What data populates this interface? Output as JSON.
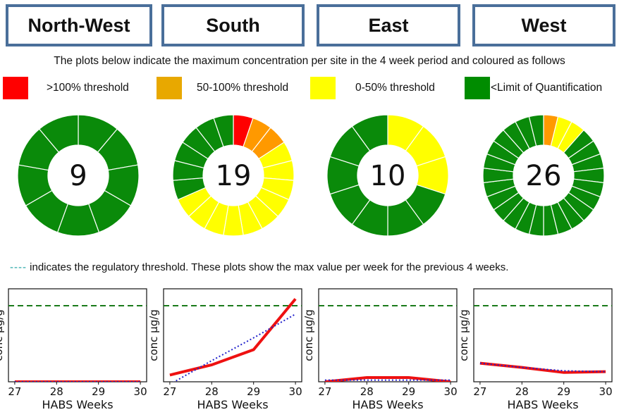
{
  "regions": [
    "North-West",
    "South",
    "East",
    "West"
  ],
  "intro_text": "The plots below indicate the maximum concentration per site in the 4 week period and coloured as follows",
  "legend": [
    {
      "label": ">100% threshold",
      "color": "#ff0000"
    },
    {
      "label": "50-100% threshold",
      "color": "#e8a800"
    },
    {
      "label": "0-50% threshold",
      "color": "#ffff00"
    },
    {
      "label": "<Limit of Quantification",
      "color": "#008c00"
    }
  ],
  "threshold_note": {
    "dash": "----",
    "text": " indicates the regulatory threshold. These plots show the max value per week for the previous 4 weeks."
  },
  "colors": {
    "red": "#ff0000",
    "amber": "#ff9900",
    "yellow": "#ffff00",
    "green": "#0a8a0a",
    "threshold_line": "#1a7a1a",
    "trend": "#2222cc",
    "max_line": "#ee1111"
  },
  "chart_data": [
    {
      "type": "pie",
      "region": "North-West",
      "count": "9",
      "slices": [
        {
          "label": "<Limit of Quantification",
          "value": 9
        }
      ]
    },
    {
      "type": "pie",
      "region": "South",
      "count": "19",
      "slices": [
        {
          "label": ">100% threshold",
          "value": 1
        },
        {
          "label": "50-100% threshold",
          "value": 2
        },
        {
          "label": "0-50% threshold",
          "value": 10
        },
        {
          "label": "<Limit of Quantification",
          "value": 6
        }
      ]
    },
    {
      "type": "pie",
      "region": "East",
      "count": "10",
      "slices": [
        {
          "label": "0-50% threshold",
          "value": 3
        },
        {
          "label": "<Limit of Quantification",
          "value": 7
        }
      ]
    },
    {
      "type": "pie",
      "region": "West",
      "count": "26",
      "slices": [
        {
          "label": "50-100% threshold",
          "value": 1
        },
        {
          "label": "0-50% threshold",
          "value": 2
        },
        {
          "label": "<Limit of Quantification",
          "value": 23
        }
      ]
    },
    {
      "type": "line",
      "region": "North-West",
      "xlabel": "HABS Weeks",
      "ylabel": "conc µg/g",
      "x": [
        27,
        28,
        29,
        30
      ],
      "ylim": [
        0,
        1.1
      ],
      "threshold": 0.9,
      "series": [
        {
          "values": [
            0,
            0,
            0,
            0
          ]
        }
      ],
      "trend": [
        0,
        0,
        0,
        0
      ]
    },
    {
      "type": "line",
      "region": "South",
      "xlabel": "HABS Weeks",
      "ylabel": "conc µg/g",
      "x": [
        27,
        28,
        29,
        30
      ],
      "ylim": [
        0,
        1.1
      ],
      "threshold": 0.9,
      "series": [
        {
          "values": [
            0.08,
            0.2,
            0.38,
            0.98
          ]
        }
      ],
      "trend": [
        -0.03,
        0.25,
        0.52,
        0.8
      ]
    },
    {
      "type": "line",
      "region": "East",
      "xlabel": "HABS Weeks",
      "ylabel": "conc µg/g",
      "x": [
        27,
        28,
        29,
        30
      ],
      "ylim": [
        0,
        1.1
      ],
      "threshold": 0.9,
      "series": [
        {
          "values": [
            0,
            0.05,
            0.05,
            0
          ]
        }
      ],
      "trend": [
        0.02,
        0.02,
        0.02,
        0.02
      ]
    },
    {
      "type": "line",
      "region": "West",
      "xlabel": "HABS Weeks",
      "ylabel": "conc µg/g",
      "x": [
        27,
        28,
        29,
        30
      ],
      "ylim": [
        0,
        1.1
      ],
      "threshold": 0.9,
      "series": [
        {
          "values": [
            0.22,
            0.17,
            0.11,
            0.12
          ]
        }
      ],
      "trend": [
        0.22,
        0.17,
        0.13,
        0.12
      ]
    }
  ]
}
